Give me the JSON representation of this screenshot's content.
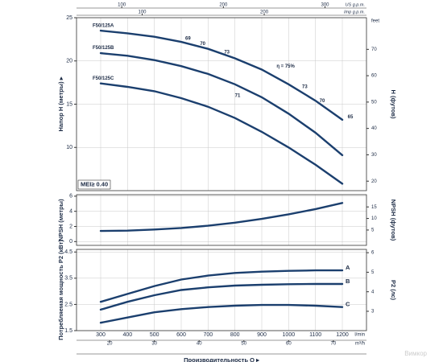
{
  "chart_data": [
    {
      "type": "line",
      "ylabel": "Напор H (метры) ▸",
      "y2label": "H (футов)",
      "y2unit": "feet",
      "mei_label": "MEI≥ 0.40",
      "x": [
        300,
        400,
        500,
        600,
        700,
        800,
        900,
        1000,
        1100,
        1200
      ],
      "xlim": [
        210,
        1290
      ],
      "xticks": [
        300,
        400,
        500,
        600,
        700,
        800,
        900,
        1000,
        1100,
        1200
      ],
      "ylim": [
        5,
        25
      ],
      "yticks": [
        10,
        15,
        20,
        25
      ],
      "y2lim": [
        16.4,
        82
      ],
      "y2ticks": [
        20,
        30,
        40,
        50,
        60,
        70
      ],
      "grid": true,
      "top_axes": [
        {
          "label": "US g.p.m.",
          "xlim": [
            55.5,
            340.8
          ],
          "xticks": [
            100,
            200,
            300
          ]
        },
        {
          "label": "Imp g.p.m.",
          "xlim": [
            46.2,
            283.8
          ],
          "xticks": [
            100,
            200
          ]
        }
      ],
      "series": [
        {
          "name": "F50/125A",
          "color": "#1b3f6e",
          "values": [
            23.5,
            23.2,
            22.8,
            22.2,
            21.4,
            20.3,
            19.0,
            17.3,
            15.4,
            13.2
          ]
        },
        {
          "name": "F50/125B",
          "color": "#1b3f6e",
          "values": [
            20.9,
            20.6,
            20.1,
            19.4,
            18.5,
            17.3,
            15.8,
            13.9,
            11.7,
            9.1
          ]
        },
        {
          "name": "F50/125C",
          "color": "#1b3f6e",
          "values": [
            17.4,
            17.0,
            16.5,
            15.7,
            14.7,
            13.4,
            11.8,
            10.0,
            8.0,
            5.8
          ]
        }
      ],
      "annotations": [
        {
          "text": "F50/125A",
          "x": 270,
          "y": 24.1
        },
        {
          "text": "F50/125B",
          "x": 270,
          "y": 21.5
        },
        {
          "text": "F50/125C",
          "x": 270,
          "y": 18.0
        },
        {
          "text": "69",
          "x": 615,
          "y": 22.6
        },
        {
          "text": "70",
          "x": 670,
          "y": 22.0
        },
        {
          "text": "73",
          "x": 760,
          "y": 21.0
        },
        {
          "text": "η = 75%",
          "x": 955,
          "y": 19.4
        },
        {
          "text": "73",
          "x": 1050,
          "y": 17.0
        },
        {
          "text": "70",
          "x": 1115,
          "y": 15.4
        },
        {
          "text": "65",
          "x": 1220,
          "y": 13.5
        },
        {
          "text": "71",
          "x": 800,
          "y": 16.0
        }
      ]
    },
    {
      "type": "line",
      "ylabel": "NPSH (метры)",
      "y2label": "NPSH (футов)",
      "x": [
        300,
        400,
        500,
        600,
        700,
        800,
        900,
        1000,
        1100,
        1200
      ],
      "xlim": [
        210,
        1290
      ],
      "xticks": [
        300,
        400,
        500,
        600,
        700,
        800,
        900,
        1000,
        1100,
        1200
      ],
      "ylim": [
        -0.5,
        6.2
      ],
      "yticks": [
        0,
        2,
        4,
        6
      ],
      "y2lim": [
        -1.64,
        20.3
      ],
      "y2ticks": [
        5,
        10,
        15
      ],
      "grid": true,
      "series": [
        {
          "name": "NPSH",
          "color": "#1b3f6e",
          "values": [
            1.4,
            1.45,
            1.6,
            1.8,
            2.1,
            2.5,
            3.0,
            3.6,
            4.3,
            5.1
          ]
        }
      ]
    },
    {
      "type": "line",
      "ylabel": "Потребляемая мощность P2 (кВт)",
      "y2label": "P2 (лс)",
      "xlabel": "Производительность Q ▸",
      "xunit": "l/min",
      "x": [
        300,
        400,
        500,
        600,
        700,
        800,
        900,
        1000,
        1100,
        1200
      ],
      "xlim": [
        210,
        1290
      ],
      "xticks": [
        300,
        400,
        500,
        600,
        700,
        800,
        900,
        1000,
        1100,
        1200
      ],
      "ylim": [
        1.5,
        4.6
      ],
      "yticks": [
        1.5,
        2.5,
        3.5,
        4.5
      ],
      "y2lim": [
        2.01,
        6.17
      ],
      "y2ticks": [
        3,
        4,
        5,
        6
      ],
      "x2lim": [
        12.6,
        77.4
      ],
      "x2ticks": [
        20,
        30,
        40,
        50,
        60,
        70
      ],
      "x2unit": "m³/h",
      "grid": true,
      "series": [
        {
          "name": "A",
          "color": "#1b3f6e",
          "values": [
            2.6,
            2.9,
            3.2,
            3.45,
            3.6,
            3.7,
            3.75,
            3.78,
            3.8,
            3.8
          ]
        },
        {
          "name": "B",
          "color": "#1b3f6e",
          "values": [
            2.3,
            2.6,
            2.85,
            3.05,
            3.15,
            3.22,
            3.25,
            3.27,
            3.28,
            3.28
          ]
        },
        {
          "name": "C",
          "color": "#1b3f6e",
          "values": [
            1.8,
            2.0,
            2.2,
            2.32,
            2.4,
            2.45,
            2.48,
            2.48,
            2.45,
            2.4
          ]
        }
      ]
    }
  ],
  "watermark": "Вимкор"
}
